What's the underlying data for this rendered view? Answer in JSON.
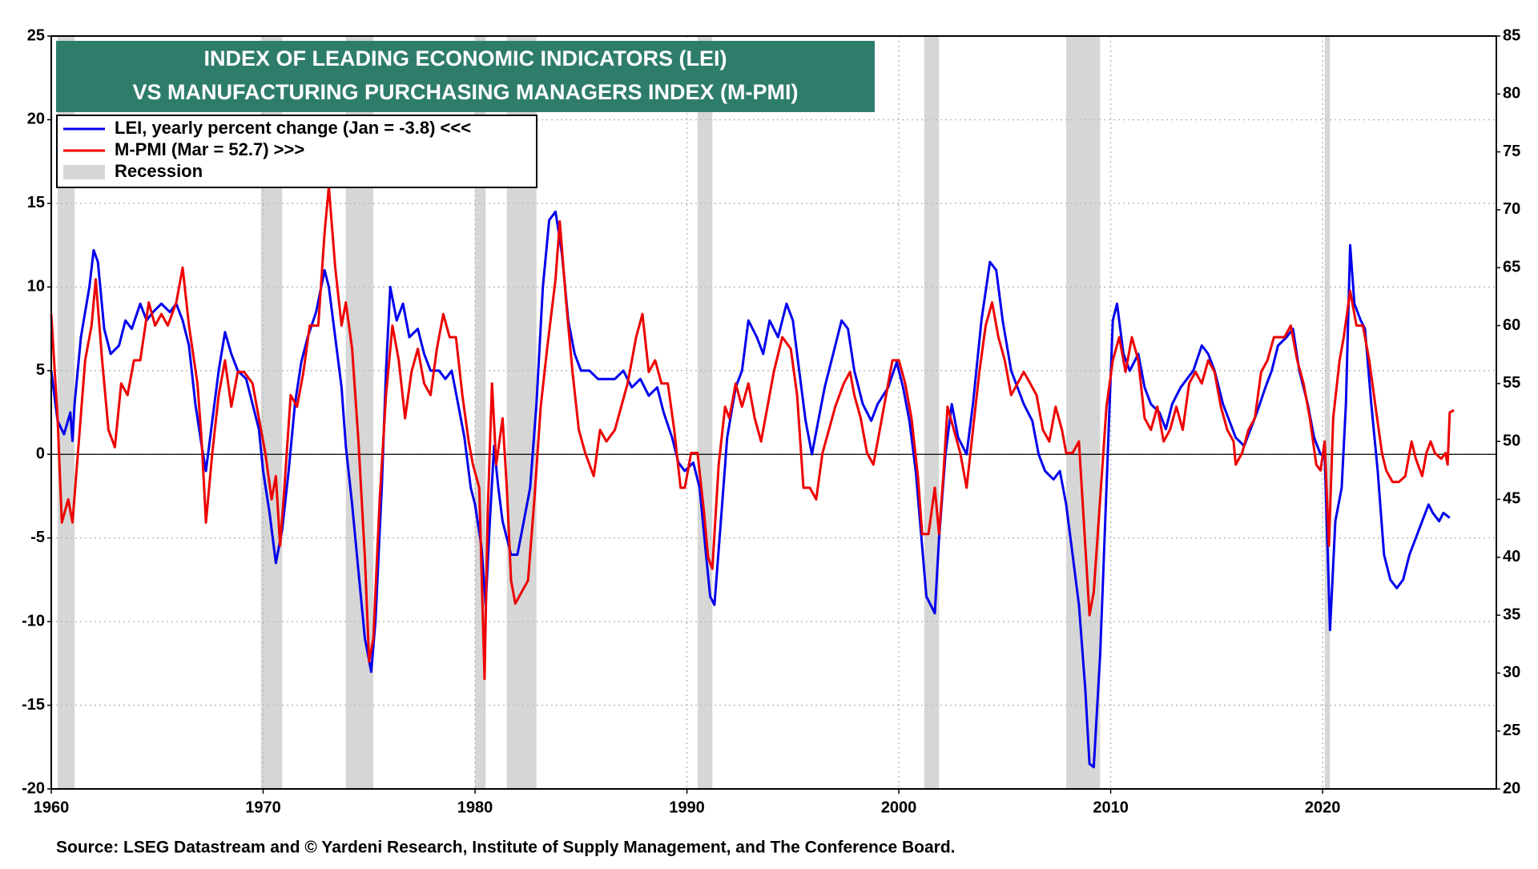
{
  "chart_data": {
    "type": "line",
    "title": [
      "INDEX OF LEADING ECONOMIC INDICATORS (LEI)",
      "VS MANUFACTURING PURCHASING MANAGERS INDEX (M-PMI)"
    ],
    "source": "Source: LSEG Datastream and © Yardeni Research, Institute of Supply Management, and The Conference Board.",
    "xlim": [
      1960,
      2028.2
    ],
    "xticks": [
      1960,
      1970,
      1980,
      1990,
      2000,
      2010,
      2020
    ],
    "ylim": [
      -20,
      25
    ],
    "yticks": [
      -20,
      -15,
      -10,
      -5,
      0,
      5,
      10,
      15,
      20,
      25
    ],
    "y2lim": [
      20,
      85
    ],
    "y2ticks": [
      20,
      25,
      30,
      35,
      40,
      45,
      50,
      55,
      60,
      65,
      70,
      75,
      80,
      85
    ],
    "grid": true,
    "zero_line": true,
    "recessions": {
      "name": "Recession",
      "color": "#d6d6d6",
      "periods": [
        [
          1960.3,
          1961.1
        ],
        [
          1969.9,
          1970.9
        ],
        [
          1973.9,
          1975.2
        ],
        [
          1980.0,
          1980.5
        ],
        [
          1981.5,
          1982.9
        ],
        [
          1990.5,
          1991.2
        ],
        [
          2001.2,
          2001.9
        ],
        [
          2007.9,
          2009.5
        ],
        [
          2020.1,
          2020.35
        ]
      ]
    },
    "series": [
      {
        "name": "LEI, yearly percent change (Jan = -3.8) <<<",
        "color": "#0000ee",
        "axis": "y",
        "x": [
          1960.0,
          1960.3,
          1960.6,
          1960.9,
          1961.0,
          1961.1,
          1961.4,
          1961.8,
          1962.0,
          1962.2,
          1962.5,
          1962.8,
          1963.2,
          1963.5,
          1963.8,
          1964.2,
          1964.5,
          1964.8,
          1965.2,
          1965.6,
          1965.9,
          1966.2,
          1966.5,
          1966.8,
          1967.1,
          1967.3,
          1967.6,
          1967.9,
          1968.2,
          1968.5,
          1968.8,
          1969.2,
          1969.5,
          1969.8,
          1970.0,
          1970.3,
          1970.6,
          1970.9,
          1971.2,
          1971.5,
          1971.8,
          1972.1,
          1972.5,
          1972.9,
          1973.1,
          1973.4,
          1973.7,
          1973.9,
          1974.2,
          1974.5,
          1974.8,
          1975.1,
          1975.3,
          1975.6,
          1975.8,
          1976.0,
          1976.3,
          1976.6,
          1976.9,
          1977.3,
          1977.6,
          1977.9,
          1978.3,
          1978.6,
          1978.9,
          1979.2,
          1979.5,
          1979.8,
          1980.0,
          1980.3,
          1980.5,
          1980.7,
          1980.9,
          1981.1,
          1981.3,
          1981.5,
          1981.7,
          1982.0,
          1982.3,
          1982.6,
          1982.9,
          1983.2,
          1983.5,
          1983.8,
          1984.1,
          1984.4,
          1984.7,
          1985.0,
          1985.4,
          1985.8,
          1986.2,
          1986.6,
          1987.0,
          1987.4,
          1987.8,
          1988.2,
          1988.6,
          1988.9,
          1989.3,
          1989.6,
          1989.9,
          1990.3,
          1990.6,
          1990.9,
          1991.1,
          1991.3,
          1991.6,
          1991.9,
          1992.3,
          1992.6,
          1992.9,
          1993.3,
          1993.6,
          1993.9,
          1994.3,
          1994.7,
          1995.0,
          1995.3,
          1995.6,
          1995.9,
          1996.2,
          1996.5,
          1996.9,
          1997.3,
          1997.6,
          1997.9,
          1998.3,
          1998.7,
          1999.0,
          1999.5,
          1999.9,
          2000.2,
          2000.5,
          2000.8,
          2001.0,
          2001.3,
          2001.5,
          2001.7,
          2001.9,
          2002.2,
          2002.5,
          2002.8,
          2003.2,
          2003.5,
          2003.9,
          2004.3,
          2004.6,
          2004.9,
          2005.3,
          2005.6,
          2005.9,
          2006.3,
          2006.6,
          2006.9,
          2007.3,
          2007.6,
          2007.9,
          2008.2,
          2008.5,
          2008.8,
          2009.0,
          2009.2,
          2009.5,
          2009.8,
          2010.1,
          2010.3,
          2010.6,
          2010.9,
          2011.3,
          2011.6,
          2011.9,
          2012.3,
          2012.6,
          2012.9,
          2013.3,
          2013.6,
          2013.9,
          2014.3,
          2014.6,
          2014.9,
          2015.3,
          2015.6,
          2015.9,
          2016.3,
          2016.6,
          2016.9,
          2017.3,
          2017.6,
          2017.9,
          2018.3,
          2018.6,
          2018.9,
          2019.3,
          2019.6,
          2019.9,
          2020.1,
          2020.35,
          2020.6,
          2020.9,
          2021.1,
          2021.3,
          2021.5,
          2021.8,
          2022.0,
          2022.3,
          2022.6,
          2022.9,
          2023.2,
          2023.5,
          2023.8,
          2024.1,
          2024.4,
          2024.7,
          2025.0,
          2025.2,
          2025.5,
          2025.7,
          2026.0
        ],
        "values": [
          5,
          2,
          1.2,
          2.5,
          0.8,
          3,
          7,
          10,
          12.2,
          11.5,
          7.5,
          6,
          6.5,
          8,
          7.5,
          9,
          8,
          8.5,
          9,
          8.5,
          9,
          8,
          6.5,
          3,
          0.5,
          -1,
          2,
          5,
          7.3,
          6,
          5,
          4.5,
          3,
          1.5,
          -1,
          -3.5,
          -6.5,
          -4.5,
          -1,
          3,
          5.5,
          7,
          8.5,
          11,
          10,
          7,
          4,
          0.5,
          -3,
          -7,
          -11,
          -13,
          -10,
          -2,
          5,
          10,
          8,
          9,
          7,
          7.5,
          6,
          5,
          5,
          4.5,
          5,
          3,
          1,
          -2,
          -3,
          -5.5,
          -9,
          -4,
          0.5,
          -2,
          -4,
          -5,
          -6,
          -6,
          -4,
          -2,
          3,
          10,
          14,
          14.5,
          12,
          8,
          6,
          5,
          5,
          4.5,
          4.5,
          4.5,
          5,
          4,
          4.5,
          3.5,
          4,
          2.5,
          1,
          -0.5,
          -1,
          -0.5,
          -2,
          -6,
          -8.5,
          -9,
          -4,
          1,
          4,
          5,
          8,
          7,
          6,
          8,
          7,
          9,
          8,
          5,
          2,
          0,
          2,
          4,
          6,
          8,
          7.5,
          5,
          3,
          2,
          3,
          4,
          5.5,
          4,
          2,
          -1,
          -4,
          -8.5,
          -9,
          -9.5,
          -5,
          0,
          3,
          1,
          0,
          3,
          8,
          11.5,
          11,
          8,
          5,
          4,
          3,
          2,
          0,
          -1,
          -1.5,
          -1,
          -3,
          -6,
          -9,
          -14,
          -18.5,
          -18.7,
          -12,
          -2,
          8,
          9,
          6,
          5,
          6,
          4,
          3,
          2.5,
          1.5,
          3,
          4,
          4.5,
          5,
          6.5,
          6,
          5,
          3,
          2,
          1,
          0.5,
          1.5,
          2.5,
          4,
          5,
          6.5,
          7,
          7.5,
          5,
          3,
          1,
          0,
          0,
          -10.5,
          -4,
          -2,
          3,
          12.5,
          9,
          8,
          7.5,
          3,
          -1,
          -6,
          -7.5,
          -8,
          -7.5,
          -6,
          -5,
          -4,
          -3,
          -3.5,
          -4,
          -3.5,
          -3.8
        ]
      },
      {
        "name": "M-PMI (Mar = 52.7) >>>",
        "color": "#ee0000",
        "axis": "y2",
        "x": [
          1960.0,
          1960.3,
          1960.5,
          1960.8,
          1961.0,
          1961.3,
          1961.6,
          1961.9,
          1962.1,
          1962.4,
          1962.7,
          1963.0,
          1963.3,
          1963.6,
          1963.9,
          1964.2,
          1964.6,
          1964.9,
          1965.2,
          1965.5,
          1965.9,
          1966.2,
          1966.5,
          1966.9,
          1967.1,
          1967.3,
          1967.6,
          1967.9,
          1968.2,
          1968.5,
          1968.8,
          1969.1,
          1969.5,
          1969.8,
          1970.1,
          1970.4,
          1970.6,
          1970.8,
          1971.0,
          1971.3,
          1971.6,
          1971.9,
          1972.2,
          1972.6,
          1972.9,
          1973.1,
          1973.4,
          1973.7,
          1973.9,
          1974.2,
          1974.5,
          1974.8,
          1975.0,
          1975.2,
          1975.5,
          1975.8,
          1976.1,
          1976.4,
          1976.7,
          1977.0,
          1977.3,
          1977.6,
          1977.9,
          1978.2,
          1978.5,
          1978.8,
          1979.1,
          1979.4,
          1979.7,
          1979.9,
          1980.2,
          1980.45,
          1980.6,
          1980.8,
          1981.0,
          1981.3,
          1981.5,
          1981.7,
          1981.9,
          1982.2,
          1982.5,
          1982.8,
          1983.1,
          1983.4,
          1983.8,
          1984.0,
          1984.3,
          1984.6,
          1984.9,
          1985.2,
          1985.6,
          1985.9,
          1986.2,
          1986.6,
          1986.9,
          1987.2,
          1987.6,
          1987.9,
          1988.2,
          1988.5,
          1988.8,
          1989.1,
          1989.4,
          1989.7,
          1989.9,
          1990.2,
          1990.5,
          1990.8,
          1991.0,
          1991.2,
          1991.5,
          1991.8,
          1992.0,
          1992.3,
          1992.6,
          1992.9,
          1993.2,
          1993.5,
          1993.8,
          1994.1,
          1994.5,
          1994.9,
          1995.2,
          1995.5,
          1995.8,
          1996.1,
          1996.4,
          1996.7,
          1997.0,
          1997.4,
          1997.7,
          1997.9,
          1998.2,
          1998.5,
          1998.8,
          1999.1,
          1999.4,
          1999.7,
          2000.0,
          2000.3,
          2000.6,
          2000.9,
          2001.1,
          2001.4,
          2001.7,
          2001.9,
          2002.1,
          2002.3,
          2002.6,
          2002.9,
          2003.2,
          2003.5,
          2003.8,
          2004.1,
          2004.4,
          2004.7,
          2005.0,
          2005.3,
          2005.6,
          2005.9,
          2006.2,
          2006.5,
          2006.8,
          2007.1,
          2007.4,
          2007.7,
          2007.9,
          2008.2,
          2008.5,
          2008.7,
          2008.9,
          2009.0,
          2009.2,
          2009.5,
          2009.8,
          2010.1,
          2010.4,
          2010.7,
          2011.0,
          2011.3,
          2011.6,
          2011.9,
          2012.2,
          2012.5,
          2012.8,
          2013.1,
          2013.4,
          2013.7,
          2014.0,
          2014.3,
          2014.6,
          2014.9,
          2015.2,
          2015.5,
          2015.8,
          2015.9,
          2016.2,
          2016.5,
          2016.8,
          2017.1,
          2017.4,
          2017.7,
          2017.9,
          2018.2,
          2018.5,
          2018.8,
          2019.1,
          2019.4,
          2019.7,
          2019.9,
          2020.1,
          2020.3,
          2020.5,
          2020.8,
          2021.0,
          2021.3,
          2021.6,
          2021.9,
          2022.2,
          2022.5,
          2022.8,
          2023.0,
          2023.3,
          2023.6,
          2023.9,
          2024.2,
          2024.4,
          2024.7,
          2024.9,
          2025.1,
          2025.3,
          2025.6,
          2025.8,
          2025.9,
          2026.0,
          2026.2
        ],
        "values": [
          61,
          52,
          43,
          45,
          43,
          50,
          57,
          60,
          64,
          57,
          51,
          49.5,
          55,
          54,
          57,
          57,
          62,
          60,
          61,
          60,
          62,
          65,
          60,
          55,
          50,
          43,
          49,
          54,
          57,
          53,
          56,
          56,
          55,
          52,
          49,
          45,
          47,
          41,
          46,
          54,
          53,
          56,
          60,
          60,
          68,
          72,
          65,
          60,
          62,
          58,
          50,
          40,
          31,
          33,
          45,
          54,
          60,
          57,
          52,
          56,
          58,
          55,
          54,
          58,
          61,
          59,
          59,
          54,
          50,
          48,
          46,
          29.5,
          44,
          55,
          48,
          52,
          46,
          38,
          36,
          37,
          38,
          45,
          53,
          58,
          64,
          69,
          62,
          56,
          51,
          49,
          47,
          51,
          50,
          51,
          53,
          55,
          59,
          61,
          56,
          57,
          55,
          55,
          51,
          46,
          46,
          49,
          49,
          44,
          40,
          39,
          48,
          53,
          52,
          55,
          53,
          55,
          52,
          50,
          53,
          56,
          59,
          58,
          54,
          46,
          46,
          45,
          49,
          51,
          53,
          55,
          56,
          54,
          52,
          49,
          48,
          51,
          54,
          57,
          57,
          55,
          52,
          47,
          42,
          42,
          46,
          42,
          47,
          53,
          51,
          49,
          46,
          51,
          56,
          60,
          62,
          59,
          57,
          54,
          55,
          56,
          55,
          54,
          51,
          50,
          53,
          51,
          49,
          49,
          50,
          44,
          38,
          35,
          37,
          45,
          53,
          57,
          59,
          56,
          59,
          57,
          52,
          51,
          53,
          50,
          51,
          53,
          51,
          55,
          56,
          55,
          57,
          56,
          53,
          51,
          50,
          48,
          49,
          51,
          52,
          56,
          57,
          59,
          59,
          59,
          60,
          57,
          55,
          52,
          48,
          47.5,
          50,
          41,
          52,
          57,
          59,
          63,
          60,
          60,
          57,
          53,
          49,
          47.5,
          46.5,
          46.5,
          47,
          50,
          48.5,
          47,
          49,
          50,
          49,
          48.5,
          49,
          48,
          52.5,
          52.7
        ]
      }
    ]
  }
}
